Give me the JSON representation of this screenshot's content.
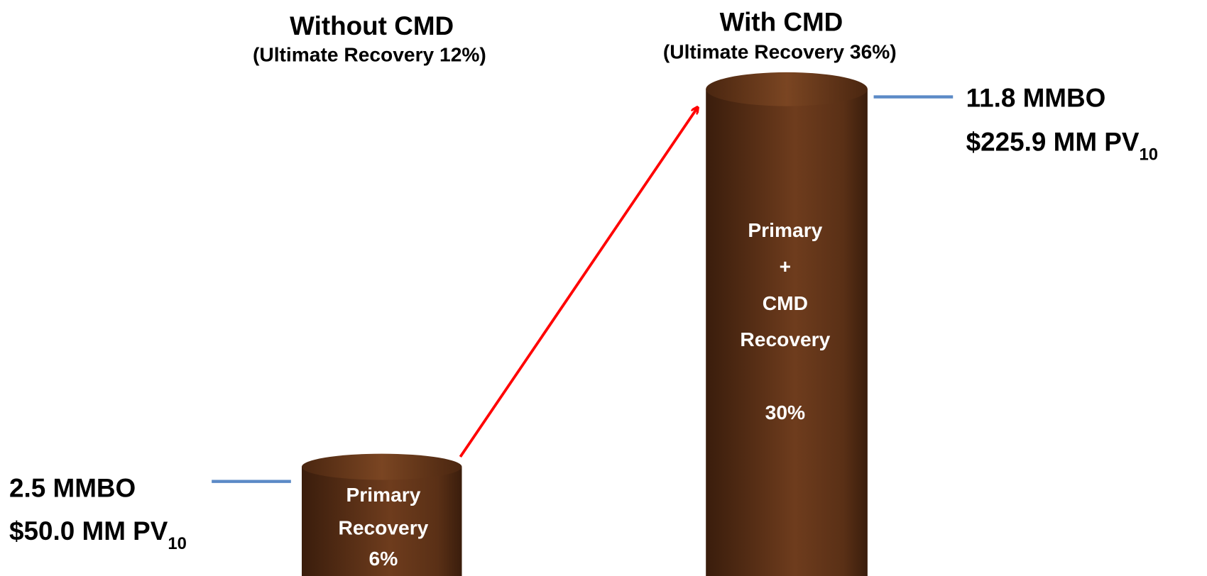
{
  "left": {
    "title": "Without CMD",
    "subtitle": "(Ultimate Recovery 12%)",
    "volume": "2.5 MMBO",
    "pv_label": "$50.0 MM PV",
    "pv_subscript": "10",
    "cylinder_lines": [
      "Primary",
      "Recovery",
      "6%"
    ]
  },
  "right": {
    "title": "With CMD",
    "subtitle": "(Ultimate Recovery 36%)",
    "volume": "11.8 MMBO",
    "pv_label": "$225.9 MM PV",
    "pv_subscript": "10",
    "cylinder_lines": [
      "Primary",
      "+",
      "CMD",
      "Recovery",
      "30%"
    ]
  }
}
